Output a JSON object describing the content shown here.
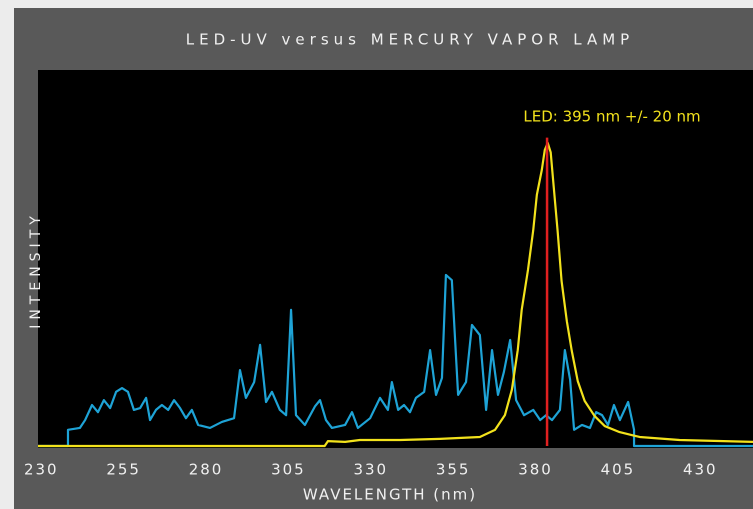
{
  "chart_data": {
    "type": "line",
    "title": "LED-UV versus MERCURY VAPOR LAMP",
    "xlabel": "WAVELENGTH (nm)",
    "ylabel": "INTENSITY",
    "annotation": "LED: 395 nm +/- 20 nm",
    "xlim": [
      229,
      446
    ],
    "ylim": [
      0,
      100
    ],
    "xticks": [
      230,
      255,
      280,
      305,
      330,
      355,
      380,
      405,
      430,
      455
    ],
    "vline": {
      "x": 383.5,
      "y": 82,
      "color": "#e02020"
    },
    "series": [
      {
        "color": "#1ea3d6",
        "x": [
          229,
          238.1,
          238.1,
          241.7,
          243.3,
          245.4,
          247.2,
          249,
          250.9,
          252.7,
          254.5,
          256.3,
          258.1,
          260,
          261.8,
          263,
          264.8,
          266.6,
          268.5,
          270.3,
          272.1,
          273.9,
          275.7,
          277.6,
          281.2,
          284.8,
          288.5,
          290.3,
          292.1,
          294.6,
          296.4,
          298.2,
          300,
          302.4,
          304.3,
          305.8,
          307.3,
          310,
          313.1,
          314.6,
          316.4,
          318.2,
          322.2,
          324.3,
          326.1,
          329.8,
          332.8,
          335.2,
          336.4,
          338.3,
          340.1,
          341.9,
          343.7,
          346.2,
          348,
          349.8,
          351.6,
          352.8,
          354.6,
          356.5,
          358.9,
          360.7,
          363.1,
          365,
          366.8,
          368.6,
          370.4,
          372.3,
          374.1,
          376.5,
          379.3,
          381.4,
          383.2,
          385,
          387.4,
          388.9,
          390.5,
          391.7,
          394.1,
          396.5,
          398.4,
          400.2,
          402,
          403.8,
          405.6,
          408.1,
          409.9,
          409.9,
          446
        ],
        "values": [
          0,
          0,
          4.3,
          4.8,
          6.9,
          10.9,
          9,
          12.2,
          10.1,
          14.4,
          15.4,
          14.4,
          9.6,
          10.1,
          12.8,
          6.9,
          9.6,
          10.9,
          9.6,
          12.2,
          10.1,
          7.4,
          9.6,
          5.6,
          4.8,
          6.4,
          7.4,
          20.2,
          12.8,
          17,
          26.9,
          11.7,
          14.4,
          9.6,
          8.2,
          36.2,
          8.2,
          5.6,
          10.6,
          12.2,
          6.9,
          4.8,
          5.6,
          9,
          4.8,
          7.4,
          12.8,
          9.6,
          17,
          9.6,
          10.9,
          9,
          12.8,
          14.4,
          25.5,
          13.6,
          18.1,
          45.5,
          44.1,
          13.6,
          17,
          32.2,
          29.5,
          9.6,
          25.5,
          13.6,
          19.7,
          28.2,
          12.2,
          8.2,
          9.6,
          6.9,
          8.2,
          6.9,
          9.6,
          25.5,
          17.6,
          4.3,
          5.6,
          4.8,
          9,
          8.2,
          5.6,
          10.9,
          6.9,
          11.7,
          4.3,
          0,
          0
        ]
      },
      {
        "color": "#f2e21c",
        "x": [
          229,
          316,
          317,
          322.2,
          326.7,
          338.9,
          351,
          363.1,
          367.7,
          370.7,
          372.8,
          374.6,
          375.8,
          377.7,
          379.3,
          380.4,
          381.9,
          382.8,
          383.7,
          384.6,
          385.5,
          386.7,
          387.9,
          389.5,
          391,
          392.8,
          394.9,
          397.9,
          401,
          405.5,
          411.6,
          423.7,
          446
        ],
        "values": [
          0,
          0,
          1.3,
          1.1,
          1.6,
          1.6,
          1.9,
          2.4,
          4.3,
          8.2,
          14.9,
          25.5,
          36.2,
          46.8,
          57.4,
          66.8,
          73.4,
          78.7,
          80.6,
          78.1,
          69.1,
          57.2,
          43.9,
          33.2,
          25.3,
          17.3,
          12,
          8,
          5.3,
          3.7,
          2.4,
          1.6,
          1.1
        ]
      }
    ]
  }
}
